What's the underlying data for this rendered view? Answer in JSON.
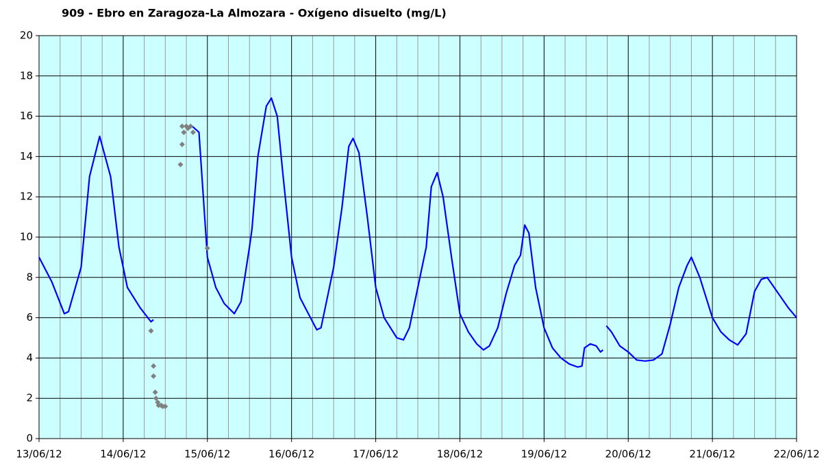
{
  "chart_data": {
    "type": "line",
    "title": "909 - Ebro en Zaragoza-La Almozara - Oxígeno disuelto (mg/L)",
    "xlim": [
      0,
      9
    ],
    "xticks": [
      {
        "value": 0,
        "label": "13/06/12"
      },
      {
        "value": 1,
        "label": "14/06/12"
      },
      {
        "value": 2,
        "label": "15/06/12"
      },
      {
        "value": 3,
        "label": "16/06/12"
      },
      {
        "value": 4,
        "label": "17/06/12"
      },
      {
        "value": 5,
        "label": "18/06/12"
      },
      {
        "value": 6,
        "label": "19/06/12"
      },
      {
        "value": 7,
        "label": "20/06/12"
      },
      {
        "value": 8,
        "label": "21/06/12"
      },
      {
        "value": 9,
        "label": "22/06/12"
      }
    ],
    "minor_grid_per_tick": 4,
    "ylim": [
      0,
      20
    ],
    "yticks": [
      0,
      2,
      4,
      6,
      8,
      10,
      12,
      14,
      16,
      18,
      20
    ],
    "grid": true,
    "background": "#ccffff",
    "series": [
      {
        "type": "line",
        "color": "#0000ff",
        "x": [
          0,
          0.15,
          0.3,
          0.35,
          0.5,
          0.6,
          0.72,
          0.85,
          0.95,
          1.05,
          1.2,
          1.33,
          1.36,
          1.37,
          1.82,
          1.9,
          2.0,
          2.1,
          2.2,
          2.32,
          2.4,
          2.5,
          2.53,
          2.6,
          2.7,
          2.76,
          2.83,
          2.9,
          3.0,
          3.1,
          3.2,
          3.3,
          3.35,
          3.5,
          3.6,
          3.68,
          3.73,
          3.8,
          3.9,
          4.0,
          4.1,
          4.25,
          4.33,
          4.4,
          4.5,
          4.6,
          4.66,
          4.73,
          4.8,
          4.9,
          5.0,
          5.1,
          5.2,
          5.28,
          5.35,
          5.45,
          5.55,
          5.65,
          5.72,
          5.77,
          5.82,
          5.9,
          6.0,
          6.1,
          6.2,
          6.3,
          6.4,
          6.45,
          6.48,
          6.55,
          6.62,
          6.67,
          6.7,
          6.72,
          6.74,
          6.8,
          6.9,
          7.0,
          7.1,
          7.2,
          7.3,
          7.4,
          7.5,
          7.6,
          7.7,
          7.75,
          7.85,
          8.0,
          8.1,
          8.2,
          8.3,
          8.4,
          8.5,
          8.58,
          8.65,
          8.75,
          8.9,
          9.0
        ],
        "values": [
          9.0,
          7.8,
          6.2,
          6.3,
          8.5,
          13,
          15,
          13,
          9.5,
          7.5,
          6.5,
          5.8,
          5.9,
          null,
          15.5,
          15.2,
          9.0,
          7.5,
          6.7,
          6.2,
          6.8,
          9.5,
          10.4,
          14,
          16.5,
          16.9,
          16,
          13,
          9,
          7,
          6.2,
          5.4,
          5.5,
          8.5,
          11.5,
          14.5,
          14.9,
          14.2,
          11,
          7.5,
          6,
          5.0,
          4.9,
          5.5,
          7.5,
          9.5,
          12.5,
          13.2,
          12,
          9,
          6.2,
          5.3,
          4.7,
          4.4,
          4.6,
          5.5,
          7.2,
          8.6,
          9.1,
          10.6,
          10.2,
          7.5,
          5.5,
          4.5,
          4.0,
          3.7,
          3.55,
          3.6,
          4.5,
          4.7,
          4.6,
          4.3,
          4.4,
          null,
          5.6,
          5.3,
          4.6,
          4.3,
          3.9,
          3.85,
          3.9,
          4.2,
          5.7,
          7.5,
          8.6,
          9.0,
          8.0,
          6.0,
          5.3,
          4.9,
          4.65,
          5.2,
          7.3,
          7.9,
          8.0,
          7.4,
          6.5,
          6.0
        ]
      },
      {
        "type": "scatter",
        "color": "#808080",
        "x": [
          1.33,
          1.36,
          1.36,
          1.38,
          1.39,
          1.41,
          1.42,
          1.45,
          1.47,
          1.5,
          1.68,
          1.7,
          1.7,
          1.72,
          1.75,
          1.77,
          1.8,
          1.83,
          2.0
        ],
        "values": [
          5.35,
          3.6,
          3.1,
          2.3,
          2.0,
          1.8,
          1.65,
          1.65,
          1.6,
          1.6,
          13.6,
          14.6,
          15.5,
          15.2,
          15.5,
          15.4,
          15.5,
          15.2,
          9.45
        ]
      }
    ]
  }
}
